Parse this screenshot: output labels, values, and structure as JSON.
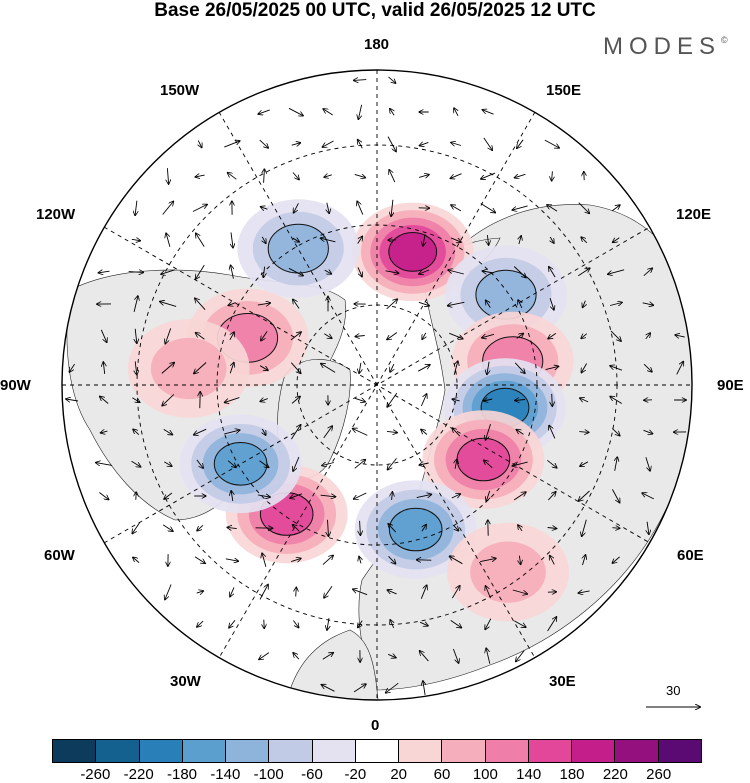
{
  "title": "Base 26/05/2025 00 UTC, valid 26/05/2025 12 UTC",
  "logo": {
    "text": "MODES",
    "mark": "©"
  },
  "longitude_labels": [
    "180",
    "150E",
    "120E",
    "90E",
    "60E",
    "30E",
    "0",
    "30W",
    "60W",
    "90W",
    "120W",
    "150W"
  ],
  "reference_vector": {
    "value": "30"
  },
  "colorbar": {
    "ticks": [
      "-260",
      "-220",
      "-180",
      "-140",
      "-100",
      "-60",
      "-20",
      "20",
      "60",
      "100",
      "140",
      "180",
      "220",
      "260"
    ],
    "colors": [
      "#0d3b5c",
      "#14618f",
      "#2980b9",
      "#5b9fcf",
      "#8fb4dc",
      "#c2cbe6",
      "#e4e2f1",
      "#ffffff",
      "#f8d6d6",
      "#f5aebb",
      "#ef7fa8",
      "#e2479a",
      "#c41e8a",
      "#93107e",
      "#5c0a73"
    ]
  },
  "anomaly_centers": [
    {
      "lon": 165,
      "lat": 55,
      "value": 200
    },
    {
      "lon": 125,
      "lat": 50,
      "value": -120
    },
    {
      "lon": 100,
      "lat": 55,
      "value": 120
    },
    {
      "lon": 80,
      "lat": 57,
      "value": -200
    },
    {
      "lon": 55,
      "lat": 57,
      "value": 150
    },
    {
      "lon": 15,
      "lat": 52,
      "value": -140
    },
    {
      "lon": -35,
      "lat": 50,
      "value": 140
    },
    {
      "lon": -60,
      "lat": 50,
      "value": -140
    },
    {
      "lon": -110,
      "lat": 55,
      "value": 120
    },
    {
      "lon": -95,
      "lat": 42,
      "value": 80
    },
    {
      "lon": -150,
      "lat": 50,
      "value": -100
    },
    {
      "lon": 35,
      "lat": 32,
      "value": 60
    }
  ]
}
